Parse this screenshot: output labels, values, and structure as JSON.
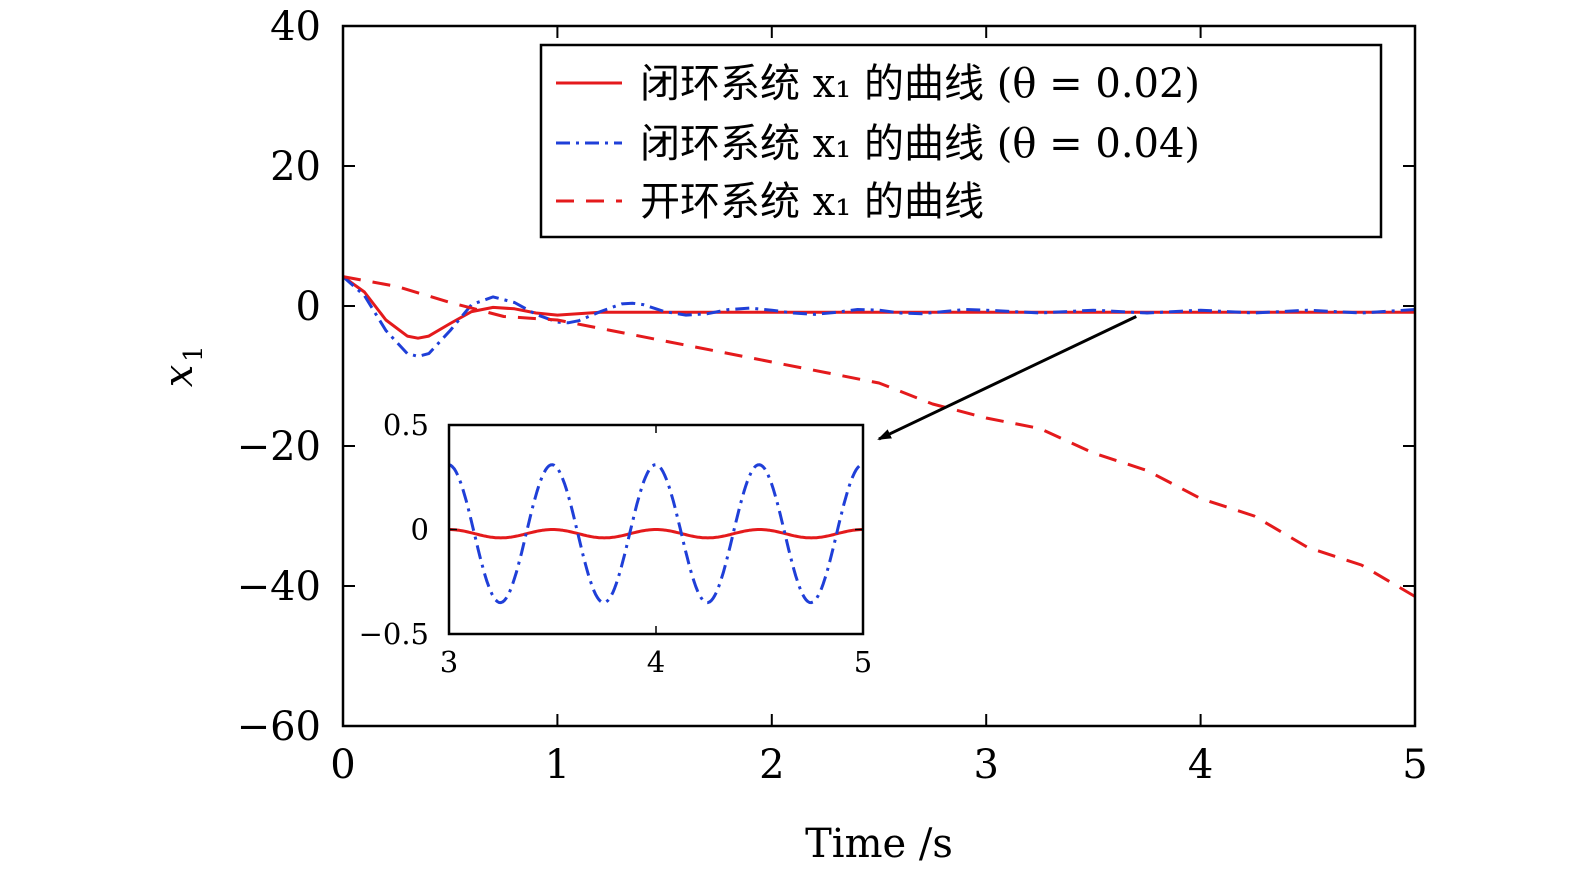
{
  "chart_data": [
    {
      "type": "line",
      "title": "",
      "xlabel": "Time /s",
      "ylabel": "x",
      "ylabel_subscript": "1",
      "xlim": [
        0,
        5
      ],
      "ylim": [
        -60,
        40
      ],
      "xticks": [
        0,
        1,
        2,
        3,
        4,
        5
      ],
      "yticks": [
        40,
        20,
        0,
        -20,
        -40,
        -60
      ],
      "xtick_labels": [
        "0",
        "1",
        "2",
        "3",
        "4",
        "5"
      ],
      "ytick_labels": [
        "40",
        "20",
        "0",
        "−20",
        "−40",
        "−60"
      ],
      "grid": false,
      "legend_position": "top-right",
      "series": [
        {
          "name": "闭环系统 x₁ 的曲线 (θ = 0.02)",
          "color": "#e41a1c",
          "style": "solid",
          "x": [
            0,
            0.1,
            0.2,
            0.3,
            0.35,
            0.4,
            0.5,
            0.6,
            0.7,
            0.8,
            0.9,
            1.0,
            1.2,
            1.5,
            2.0,
            2.5,
            3.0,
            3.5,
            4.0,
            4.5,
            5.0
          ],
          "y": [
            4.2,
            2.0,
            -2.0,
            -4.3,
            -4.6,
            -4.3,
            -2.5,
            -0.8,
            -0.2,
            -0.4,
            -1.0,
            -1.3,
            -0.9,
            -0.9,
            -0.9,
            -0.9,
            -0.9,
            -0.9,
            -0.9,
            -0.9,
            -0.9
          ]
        },
        {
          "name": "闭环系统 x₁ 的曲线 (θ = 0.04)",
          "color": "#1f3fd8",
          "style": "dashdot",
          "x": [
            0,
            0.1,
            0.2,
            0.3,
            0.35,
            0.4,
            0.5,
            0.6,
            0.7,
            0.8,
            0.9,
            1.0,
            1.05,
            1.1,
            1.2,
            1.3,
            1.35,
            1.4,
            1.5,
            1.6,
            1.7,
            1.8,
            1.9,
            2.0,
            2.1,
            2.2,
            2.3,
            2.4,
            2.5,
            2.6,
            2.7,
            2.8,
            2.9,
            3.0,
            3.25,
            3.5,
            3.75,
            4.0,
            4.25,
            4.5,
            4.75,
            5.0
          ],
          "y": [
            4.2,
            1.5,
            -3.5,
            -6.8,
            -7.2,
            -6.8,
            -3.5,
            0.2,
            1.3,
            0.5,
            -1.2,
            -2.3,
            -2.4,
            -2.1,
            -0.8,
            0.3,
            0.4,
            0.2,
            -0.8,
            -1.3,
            -1.1,
            -0.5,
            -0.3,
            -0.6,
            -1.0,
            -1.2,
            -0.9,
            -0.5,
            -0.6,
            -1.0,
            -1.1,
            -0.8,
            -0.5,
            -0.6,
            -1.0,
            -0.6,
            -1.0,
            -0.6,
            -1.0,
            -0.6,
            -1.0,
            -0.5
          ]
        },
        {
          "name": "开环系统 x₁ 的曲线",
          "color": "#e41a1c",
          "style": "dashed",
          "x": [
            0,
            0.25,
            0.5,
            0.75,
            1.0,
            1.25,
            1.5,
            1.75,
            2.0,
            2.25,
            2.5,
            2.75,
            3.0,
            3.25,
            3.5,
            3.75,
            4.0,
            4.25,
            4.5,
            4.75,
            5.0
          ],
          "y": [
            4.2,
            2.8,
            0.5,
            -1.5,
            -2.0,
            -3.5,
            -5.0,
            -6.5,
            -8.0,
            -9.5,
            -11.0,
            -14.0,
            -16.0,
            -17.5,
            -21.0,
            -23.5,
            -27.5,
            -30.0,
            -34.5,
            -37.0,
            -41.5
          ]
        }
      ],
      "annotations": [
        {
          "type": "arrow",
          "from": [
            3.7,
            -1.5
          ],
          "to": [
            2.5,
            -19.0
          ]
        }
      ]
    },
    {
      "type": "line",
      "title": "",
      "xlabel": "",
      "ylabel": "",
      "xlim": [
        3,
        5
      ],
      "ylim": [
        -0.5,
        0.5
      ],
      "xticks": [
        3,
        4,
        5
      ],
      "yticks": [
        0.5,
        0,
        -0.5
      ],
      "xtick_labels": [
        "3",
        "4",
        "5"
      ],
      "ytick_labels": [
        "0.5",
        "0",
        "−0.5"
      ],
      "grid": false,
      "series": [
        {
          "color": "#e41a1c",
          "style": "solid",
          "function": "sine",
          "offset": -0.02,
          "amplitude": 0.02,
          "period": 0.5,
          "phase_x": 3.0,
          "phase": 1.57
        },
        {
          "color": "#1f3fd8",
          "style": "dashdot",
          "function": "sine",
          "offset": -0.02,
          "amplitude": 0.33,
          "period": 0.5,
          "phase_x": 3.0,
          "phase": 1.6
        }
      ]
    }
  ]
}
